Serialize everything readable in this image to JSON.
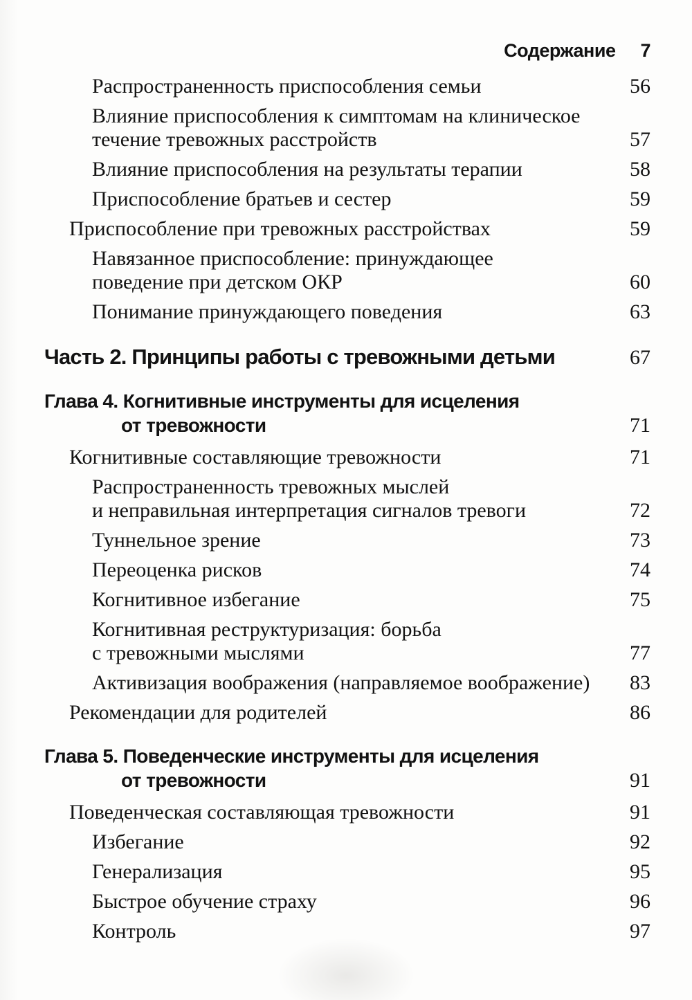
{
  "colors": {
    "paper": "#fdfdfc",
    "ink": "#121212"
  },
  "header": {
    "running_title": "Содержание",
    "page_number": "7"
  },
  "toc": {
    "entries": [
      {
        "kind": "l2",
        "lines": [
          "Распространенность приспособления семьи"
        ],
        "page": "56"
      },
      {
        "kind": "l2",
        "lines": [
          "Влияние приспособления к симптомам на клиническое",
          "течение тревожных расстройств"
        ],
        "page": "57"
      },
      {
        "kind": "l2",
        "lines": [
          "Влияние приспособления на результаты терапии"
        ],
        "page": "58"
      },
      {
        "kind": "l2",
        "lines": [
          "Приспособление братьев и сестер"
        ],
        "page": "59"
      },
      {
        "kind": "l1",
        "lines": [
          "Приспособление при тревожных расстройствах"
        ],
        "page": "59"
      },
      {
        "kind": "l2",
        "lines": [
          "Навязанное приспособление: принуждающее",
          "поведение при детском ОКР"
        ],
        "page": "60"
      },
      {
        "kind": "l2",
        "lines": [
          "Понимание принуждающего поведения"
        ],
        "page": "63"
      },
      {
        "kind": "part",
        "lines": [
          "Часть 2. Принципы работы с тревожными детьми"
        ],
        "page": "67"
      },
      {
        "kind": "chapter",
        "lines": [
          "Глава 4. Когнитивные инструменты для исцеления",
          "от тревожности"
        ],
        "page": "71"
      },
      {
        "kind": "l1",
        "lines": [
          "Когнитивные составляющие тревожности"
        ],
        "page": "71"
      },
      {
        "kind": "l2",
        "lines": [
          "Распространенность тревожных мыслей",
          "и неправильная интерпретация сигналов тревоги"
        ],
        "page": "72"
      },
      {
        "kind": "l2",
        "lines": [
          "Туннельное зрение"
        ],
        "page": "73"
      },
      {
        "kind": "l2",
        "lines": [
          "Переоценка рисков"
        ],
        "page": "74"
      },
      {
        "kind": "l2",
        "lines": [
          "Когнитивное избегание"
        ],
        "page": "75"
      },
      {
        "kind": "l2",
        "lines": [
          "Когнитивная реструктуризация: борьба",
          "с тревожными мыслями"
        ],
        "page": "77"
      },
      {
        "kind": "l2",
        "lines": [
          "Активизация воображения (направляемое воображение)"
        ],
        "page": "83"
      },
      {
        "kind": "l1",
        "lines": [
          "Рекомендации для родителей"
        ],
        "page": "86"
      },
      {
        "kind": "chapter",
        "lines": [
          "Глава 5. Поведенческие инструменты для исцеления",
          "от тревожности"
        ],
        "page": "91"
      },
      {
        "kind": "l1",
        "lines": [
          "Поведенческая составляющая тревожности"
        ],
        "page": "91"
      },
      {
        "kind": "l2",
        "lines": [
          "Избегание"
        ],
        "page": "92"
      },
      {
        "kind": "l2",
        "lines": [
          "Генерализация"
        ],
        "page": "95"
      },
      {
        "kind": "l2",
        "lines": [
          "Быстрое обучение страху"
        ],
        "page": "96"
      },
      {
        "kind": "l2",
        "lines": [
          "Контроль"
        ],
        "page": "97"
      }
    ]
  }
}
